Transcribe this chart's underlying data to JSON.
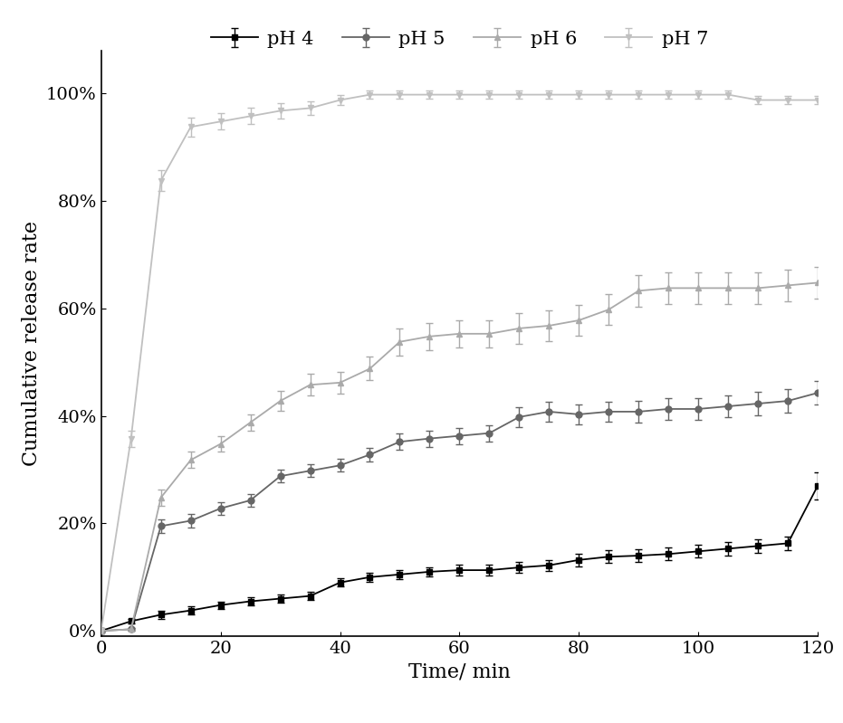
{
  "title": "",
  "xlabel": "Time/ min",
  "ylabel": "Cumulative release rate",
  "xlim": [
    0,
    120
  ],
  "ylim": [
    -0.01,
    1.08
  ],
  "yticks": [
    0,
    0.2,
    0.4,
    0.6,
    0.8,
    1.0
  ],
  "xticks": [
    0,
    20,
    40,
    60,
    80,
    100,
    120
  ],
  "series": [
    {
      "label": "pH 4",
      "color": "#000000",
      "marker": "s",
      "markersize": 5,
      "linewidth": 1.3,
      "x": [
        0,
        5,
        10,
        15,
        20,
        25,
        30,
        35,
        40,
        45,
        50,
        55,
        60,
        65,
        70,
        75,
        80,
        85,
        90,
        95,
        100,
        105,
        110,
        115,
        120
      ],
      "y": [
        0.0,
        0.018,
        0.03,
        0.038,
        0.048,
        0.055,
        0.06,
        0.065,
        0.09,
        0.1,
        0.105,
        0.11,
        0.113,
        0.113,
        0.118,
        0.122,
        0.132,
        0.138,
        0.14,
        0.143,
        0.148,
        0.153,
        0.158,
        0.163,
        0.27
      ],
      "yerr": [
        0.0,
        0.005,
        0.007,
        0.007,
        0.007,
        0.007,
        0.007,
        0.007,
        0.008,
        0.008,
        0.008,
        0.008,
        0.01,
        0.01,
        0.01,
        0.01,
        0.012,
        0.012,
        0.012,
        0.012,
        0.012,
        0.013,
        0.013,
        0.013,
        0.025
      ]
    },
    {
      "label": "pH 5",
      "color": "#666666",
      "marker": "o",
      "markersize": 5,
      "linewidth": 1.3,
      "x": [
        0,
        5,
        10,
        15,
        20,
        25,
        30,
        35,
        40,
        45,
        50,
        55,
        60,
        65,
        70,
        75,
        80,
        85,
        90,
        95,
        100,
        105,
        110,
        115,
        120
      ],
      "y": [
        0.0,
        0.003,
        0.195,
        0.205,
        0.228,
        0.243,
        0.288,
        0.298,
        0.308,
        0.328,
        0.352,
        0.358,
        0.363,
        0.368,
        0.398,
        0.408,
        0.403,
        0.408,
        0.408,
        0.413,
        0.413,
        0.418,
        0.423,
        0.428,
        0.443
      ],
      "yerr": [
        0.0,
        0.003,
        0.012,
        0.012,
        0.012,
        0.012,
        0.012,
        0.012,
        0.012,
        0.012,
        0.015,
        0.015,
        0.015,
        0.015,
        0.018,
        0.018,
        0.018,
        0.018,
        0.02,
        0.02,
        0.02,
        0.02,
        0.022,
        0.022,
        0.022
      ]
    },
    {
      "label": "pH 6",
      "color": "#aaaaaa",
      "marker": "^",
      "markersize": 5,
      "linewidth": 1.3,
      "x": [
        0,
        5,
        10,
        15,
        20,
        25,
        30,
        35,
        40,
        45,
        50,
        55,
        60,
        65,
        70,
        75,
        80,
        85,
        90,
        95,
        100,
        105,
        110,
        115,
        120
      ],
      "y": [
        0.0,
        0.003,
        0.248,
        0.318,
        0.348,
        0.388,
        0.428,
        0.458,
        0.462,
        0.488,
        0.538,
        0.548,
        0.553,
        0.553,
        0.563,
        0.568,
        0.578,
        0.598,
        0.633,
        0.638,
        0.638,
        0.638,
        0.638,
        0.643,
        0.648
      ],
      "yerr": [
        0.0,
        0.003,
        0.015,
        0.015,
        0.015,
        0.015,
        0.018,
        0.02,
        0.02,
        0.022,
        0.025,
        0.025,
        0.025,
        0.025,
        0.028,
        0.028,
        0.028,
        0.028,
        0.03,
        0.03,
        0.03,
        0.03,
        0.03,
        0.03,
        0.03
      ]
    },
    {
      "label": "pH 7",
      "color": "#c0c0c0",
      "marker": "v",
      "markersize": 5,
      "linewidth": 1.3,
      "x": [
        0,
        5,
        10,
        15,
        20,
        25,
        30,
        35,
        40,
        45,
        50,
        55,
        60,
        65,
        70,
        75,
        80,
        85,
        90,
        95,
        100,
        105,
        110,
        115,
        120
      ],
      "y": [
        0.0,
        0.358,
        0.838,
        0.938,
        0.948,
        0.958,
        0.968,
        0.973,
        0.988,
        0.998,
        0.998,
        0.998,
        0.998,
        0.998,
        0.998,
        0.998,
        0.998,
        0.998,
        0.998,
        0.998,
        0.998,
        0.998,
        0.988,
        0.988,
        0.988
      ],
      "yerr": [
        0.0,
        0.015,
        0.02,
        0.018,
        0.015,
        0.015,
        0.014,
        0.012,
        0.01,
        0.008,
        0.008,
        0.008,
        0.008,
        0.008,
        0.008,
        0.008,
        0.008,
        0.008,
        0.008,
        0.008,
        0.008,
        0.008,
        0.008,
        0.008,
        0.008
      ]
    }
  ],
  "background_color": "#ffffff",
  "legend_ncol": 4
}
